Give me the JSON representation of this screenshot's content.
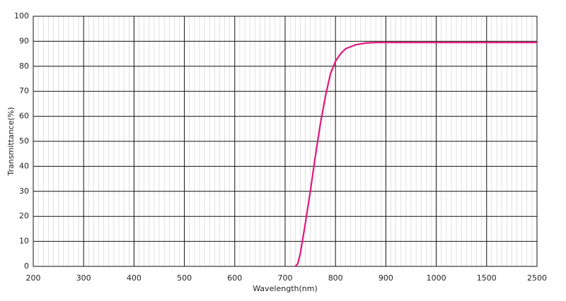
{
  "chart_data": {
    "type": "line",
    "x_label": "Wavelength(nm)",
    "y_label": "Transmittance(%)",
    "x": [
      720,
      725,
      730,
      740,
      750,
      760,
      770,
      780,
      790,
      800,
      810,
      820,
      840,
      860,
      880,
      900,
      1000,
      1500,
      2500
    ],
    "series": [
      {
        "name": "Transmittance",
        "color": "#e2177e",
        "values": [
          0,
          1,
          5,
          17,
          30,
          44,
          57,
          68,
          77,
          82,
          85,
          87,
          88.6,
          89.3,
          89.5,
          89.5,
          89.5,
          89.5,
          89.5
        ]
      }
    ],
    "xlim": [
      200,
      2500
    ],
    "xticks": [
      200,
      300,
      400,
      500,
      600,
      700,
      800,
      900,
      1000,
      1500,
      2500
    ],
    "ylim": [
      0,
      100
    ],
    "yticks": [
      0,
      10,
      20,
      30,
      40,
      50,
      60,
      70,
      80,
      90,
      100
    ],
    "grid": true
  }
}
